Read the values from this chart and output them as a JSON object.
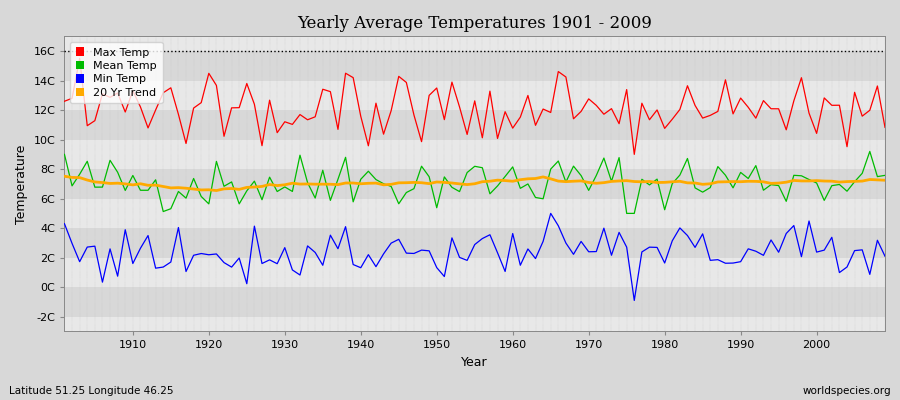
{
  "title": "Yearly Average Temperatures 1901 - 2009",
  "xlabel": "Year",
  "ylabel": "Temperature",
  "subtitle_left": "Latitude 51.25 Longitude 46.25",
  "subtitle_right": "worldspecies.org",
  "ylim": [
    -3,
    17
  ],
  "yticks": [
    -2,
    0,
    2,
    4,
    6,
    8,
    10,
    12,
    14,
    16
  ],
  "ytick_labels": [
    "-2C",
    "0C",
    "2C",
    "4C",
    "6C",
    "8C",
    "10C",
    "12C",
    "14C",
    "16C"
  ],
  "xlim": [
    1901,
    2009
  ],
  "xticks": [
    1910,
    1920,
    1930,
    1940,
    1950,
    1960,
    1970,
    1980,
    1990,
    2000
  ],
  "fig_bg_color": "#d8d8d8",
  "plot_bg_color": "#e8e8e8",
  "band_light": "#e8e8e8",
  "band_dark": "#d8d8d8",
  "max_temp_color": "#ff0000",
  "mean_temp_color": "#00bb00",
  "min_temp_color": "#0000ff",
  "trend_color": "#ffaa00",
  "dotted_line_y": 16,
  "legend_labels": [
    "Max Temp",
    "Mean Temp",
    "Min Temp",
    "20 Yr Trend"
  ],
  "legend_colors": [
    "#ff0000",
    "#00bb00",
    "#0000ff",
    "#ffaa00"
  ]
}
